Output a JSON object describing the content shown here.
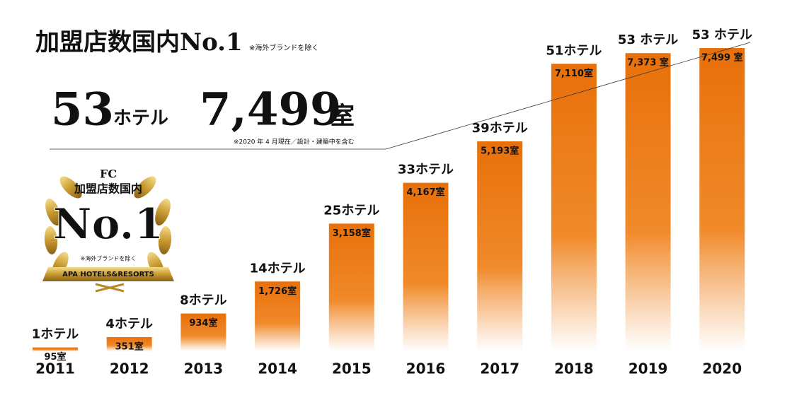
{
  "header": {
    "title": "加盟店数国内No.1",
    "note": "※海外ブランドを除く"
  },
  "headline": {
    "hotels": "53",
    "hotels_unit": "ホテル",
    "rooms": "7,499",
    "rooms_unit": "室",
    "note": "※2020 年 4 月現在／設計・建築中を含む"
  },
  "badge": {
    "top": "FC",
    "line": "加盟店数国内",
    "rank": "No.1",
    "note": "※海外ブランドを除く",
    "brand": "APA HOTELS&RESORTS"
  },
  "chart_data": {
    "type": "bar",
    "categories": [
      "2011",
      "2012",
      "2013",
      "2014",
      "2015",
      "2016",
      "2017",
      "2018",
      "2019",
      "2020"
    ],
    "values": [
      95,
      351,
      934,
      1726,
      3158,
      4167,
      5193,
      7110,
      7373,
      7499
    ],
    "value_labels": [
      "95室",
      "351室",
      "934室",
      "1,726室",
      "3,158室",
      "4,167室",
      "5,193室",
      "7,110室",
      "7,373 室",
      "7,499 室"
    ],
    "hotel_labels": [
      "1ホテル",
      "4ホテル",
      "8ホテル",
      "14ホテル",
      "25ホテル",
      "33ホテル",
      "39ホテル",
      "51ホテル",
      "53 ホテル",
      "53 ホテル"
    ],
    "color": "#e8700a"
  }
}
